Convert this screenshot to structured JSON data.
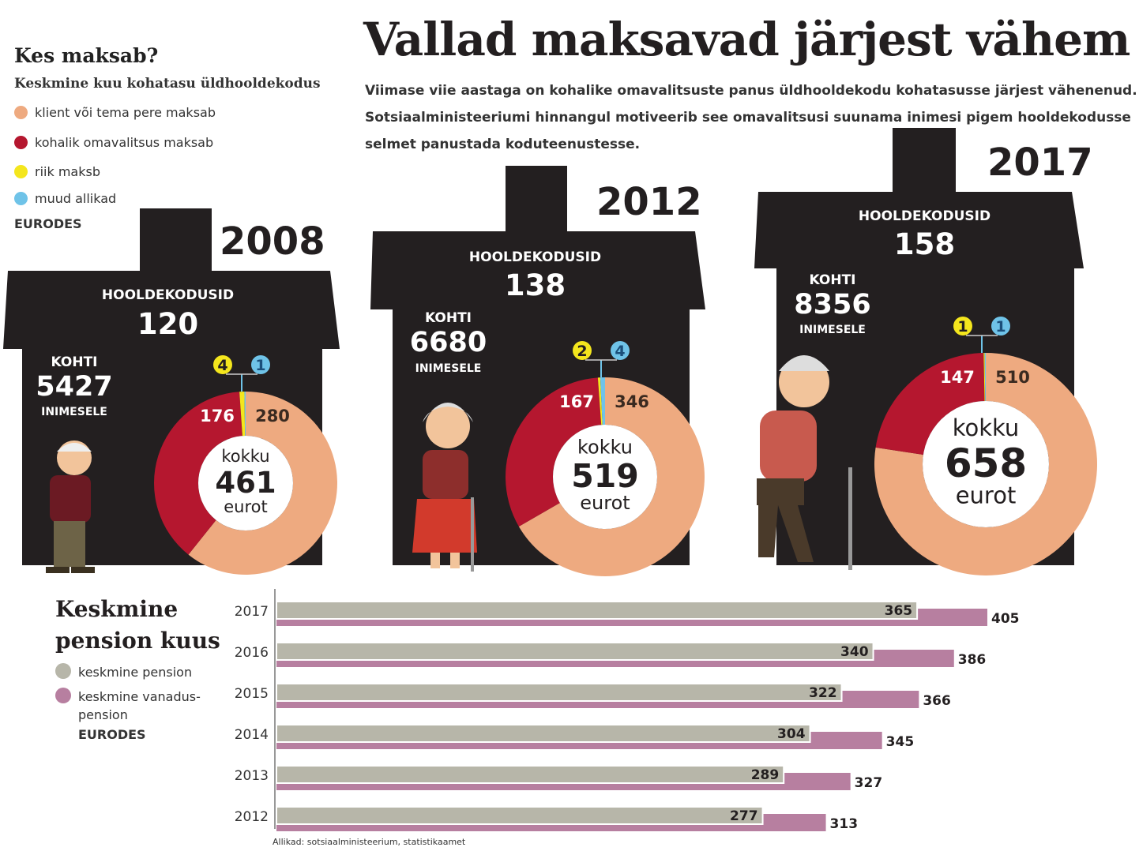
{
  "title": "Vallad maksavad järjest vähem",
  "intro_lines": [
    "Viimase viie aastaga on kohalike omavalitsuste panus üldhooldekodu kohatasusse järjest vähenenud.",
    "Sotsiaalministeeriumi hinnangul motiveerib see omavalitsusi suunama inimesi pigem hooldekodusse",
    "selmet panustada koduteenustesse."
  ],
  "legend": {
    "title": "Kes maksab?",
    "subtitle": "Keskmine kuu kohatasu üldhooldekodus",
    "items": [
      {
        "label": "klient või tema pere maksab",
        "color": "#eeaa80"
      },
      {
        "label": "kohalik omavalitsus maksab",
        "color": "#b5172f"
      },
      {
        "label": "riik maksb",
        "color": "#f4e61d"
      },
      {
        "label": "muud allikad",
        "color": "#6fc3e8"
      }
    ],
    "unit": "EURODES"
  },
  "house_labels": {
    "homes": "HOOLDEKODUSID",
    "places": "KOHTI",
    "per_people": "INIMESELE",
    "total_top": "kokku",
    "total_bottom": "eurot"
  },
  "pension": {
    "title_line1": "Keskmine",
    "title_line2": "pension kuus",
    "legend": [
      {
        "label": "keskmine pension",
        "color": "#b7b6a9"
      },
      {
        "label": "keskmine vanadus-",
        "label2": "pension",
        "color": "#b77fa0"
      }
    ],
    "unit": "EURODES"
  },
  "source": "Allikad: sotsiaalministeerium, statistikaamet",
  "colors": {
    "house": "#231f20",
    "client": "#eeaa80",
    "municipality": "#b5172f",
    "state": "#f4e61d",
    "other": "#6fc3e8",
    "pension_avg": "#b7b6a9",
    "pension_old_age": "#b77fa0"
  },
  "chart_data": [
    {
      "type": "pie",
      "year": "2008",
      "homes": "120",
      "places": "5427",
      "total": "461",
      "slices": [
        {
          "name": "klient või tema pere maksab",
          "value": 280
        },
        {
          "name": "kohalik omavalitsus maksab",
          "value": 176
        },
        {
          "name": "riik maksb",
          "value": 4
        },
        {
          "name": "muud allikad",
          "value": 1
        }
      ]
    },
    {
      "type": "pie",
      "year": "2012",
      "homes": "138",
      "places": "6680",
      "total": "519",
      "slices": [
        {
          "name": "klient või tema pere maksab",
          "value": 346
        },
        {
          "name": "kohalik omavalitsus maksab",
          "value": 167
        },
        {
          "name": "riik maksb",
          "value": 2
        },
        {
          "name": "muud allikad",
          "value": 4
        }
      ]
    },
    {
      "type": "pie",
      "year": "2017",
      "homes": "158",
      "places": "8356",
      "total": "658",
      "slices": [
        {
          "name": "klient või tema pere maksab",
          "value": 510
        },
        {
          "name": "kohalik omavalitsus maksab",
          "value": 147
        },
        {
          "name": "riik maksb",
          "value": 1
        },
        {
          "name": "muud allikad",
          "value": 1
        }
      ]
    },
    {
      "type": "bar",
      "orientation": "horizontal",
      "categories": [
        "2017",
        "2016",
        "2015",
        "2014",
        "2013",
        "2012"
      ],
      "series": [
        {
          "name": "keskmine pension",
          "values": [
            365,
            340,
            322,
            304,
            289,
            277
          ]
        },
        {
          "name": "keskmine vanadus-pension",
          "values": [
            405,
            386,
            366,
            345,
            327,
            313
          ]
        }
      ],
      "xlim": [
        0,
        405
      ]
    }
  ]
}
